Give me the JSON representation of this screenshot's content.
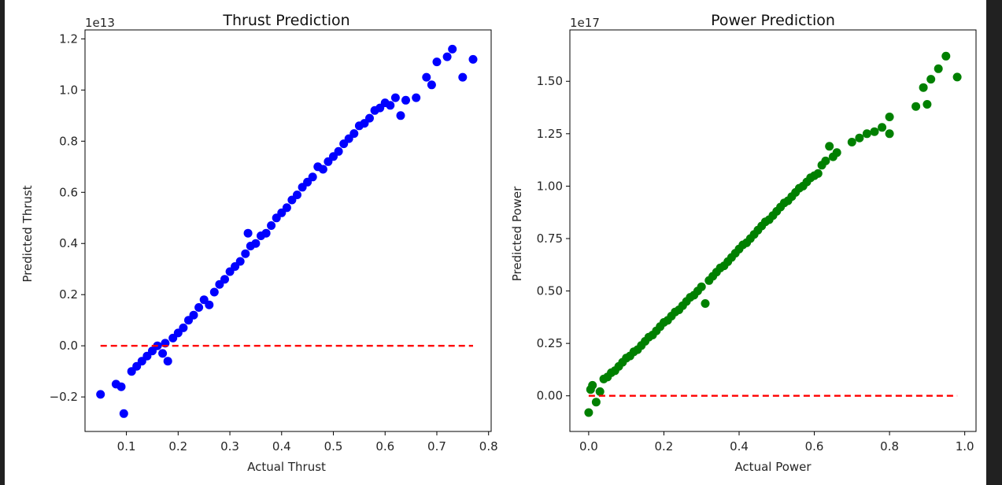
{
  "chart_data": [
    {
      "type": "scatter",
      "title": "Thrust Prediction",
      "xlabel": "Actual Thrust",
      "ylabel": "Predicted Thrust",
      "y_offset_text": "1e13",
      "xlim": [
        0.02,
        0.805
      ],
      "ylim": [
        -0.335,
        1.235
      ],
      "xticks": [
        0.1,
        0.2,
        0.3,
        0.4,
        0.5,
        0.6,
        0.7,
        0.8
      ],
      "xtick_labels": [
        "0.1",
        "0.2",
        "0.3",
        "0.4",
        "0.5",
        "0.6",
        "0.7",
        "0.8"
      ],
      "yticks": [
        -0.2,
        0.0,
        0.2,
        0.4,
        0.6,
        0.8,
        1.0,
        1.2
      ],
      "ytick_labels": [
        "−0.2",
        "0.0",
        "0.2",
        "0.4",
        "0.6",
        "0.8",
        "1.0",
        "1.2"
      ],
      "grid": false,
      "marker_color": "#0000ff",
      "reference_line": {
        "x": [
          0.05,
          0.77
        ],
        "y": [
          0.0,
          0.0
        ],
        "color": "#ff0000",
        "style": "dashed"
      },
      "series": [
        {
          "points": [
            [
              0.05,
              -0.19
            ],
            [
              0.08,
              -0.15
            ],
            [
              0.09,
              -0.16
            ],
            [
              0.095,
              -0.265
            ],
            [
              0.11,
              -0.1
            ],
            [
              0.12,
              -0.08
            ],
            [
              0.13,
              -0.06
            ],
            [
              0.14,
              -0.04
            ],
            [
              0.15,
              -0.02
            ],
            [
              0.16,
              0.0
            ],
            [
              0.17,
              -0.03
            ],
            [
              0.175,
              0.01
            ],
            [
              0.18,
              -0.06
            ],
            [
              0.19,
              0.03
            ],
            [
              0.2,
              0.05
            ],
            [
              0.21,
              0.07
            ],
            [
              0.22,
              0.1
            ],
            [
              0.23,
              0.12
            ],
            [
              0.24,
              0.15
            ],
            [
              0.25,
              0.18
            ],
            [
              0.26,
              0.16
            ],
            [
              0.27,
              0.21
            ],
            [
              0.28,
              0.24
            ],
            [
              0.29,
              0.26
            ],
            [
              0.3,
              0.29
            ],
            [
              0.31,
              0.31
            ],
            [
              0.32,
              0.33
            ],
            [
              0.33,
              0.36
            ],
            [
              0.335,
              0.44
            ],
            [
              0.34,
              0.39
            ],
            [
              0.35,
              0.4
            ],
            [
              0.36,
              0.43
            ],
            [
              0.37,
              0.44
            ],
            [
              0.38,
              0.47
            ],
            [
              0.39,
              0.5
            ],
            [
              0.4,
              0.52
            ],
            [
              0.41,
              0.54
            ],
            [
              0.42,
              0.57
            ],
            [
              0.43,
              0.59
            ],
            [
              0.44,
              0.62
            ],
            [
              0.45,
              0.64
            ],
            [
              0.46,
              0.66
            ],
            [
              0.47,
              0.7
            ],
            [
              0.48,
              0.69
            ],
            [
              0.49,
              0.72
            ],
            [
              0.5,
              0.74
            ],
            [
              0.51,
              0.76
            ],
            [
              0.52,
              0.79
            ],
            [
              0.53,
              0.81
            ],
            [
              0.54,
              0.83
            ],
            [
              0.55,
              0.86
            ],
            [
              0.56,
              0.87
            ],
            [
              0.57,
              0.89
            ],
            [
              0.58,
              0.92
            ],
            [
              0.59,
              0.93
            ],
            [
              0.6,
              0.95
            ],
            [
              0.61,
              0.94
            ],
            [
              0.62,
              0.97
            ],
            [
              0.63,
              0.9
            ],
            [
              0.64,
              0.96
            ],
            [
              0.66,
              0.97
            ],
            [
              0.68,
              1.05
            ],
            [
              0.69,
              1.02
            ],
            [
              0.7,
              1.11
            ],
            [
              0.72,
              1.13
            ],
            [
              0.73,
              1.16
            ],
            [
              0.75,
              1.05
            ],
            [
              0.77,
              1.12
            ]
          ]
        }
      ]
    },
    {
      "type": "scatter",
      "title": "Power Prediction",
      "xlabel": "Actual Power",
      "ylabel": "Predicted Power",
      "y_offset_text": "1e17",
      "xlim": [
        -0.05,
        1.03
      ],
      "ylim": [
        -0.17,
        1.745
      ],
      "xticks": [
        0.0,
        0.2,
        0.4,
        0.6,
        0.8,
        1.0
      ],
      "xtick_labels": [
        "0.0",
        "0.2",
        "0.4",
        "0.6",
        "0.8",
        "1.0"
      ],
      "yticks": [
        0.0,
        0.25,
        0.5,
        0.75,
        1.0,
        1.25,
        1.5
      ],
      "ytick_labels": [
        "0.00",
        "0.25",
        "0.50",
        "0.75",
        "1.00",
        "1.25",
        "1.50"
      ],
      "grid": false,
      "marker_color": "#008000",
      "reference_line": {
        "x": [
          0.0,
          0.98
        ],
        "y": [
          0.0,
          0.0
        ],
        "color": "#ff0000",
        "style": "dashed"
      },
      "series": [
        {
          "points": [
            [
              0.0,
              -0.08
            ],
            [
              0.005,
              0.03
            ],
            [
              0.01,
              0.05
            ],
            [
              0.02,
              -0.03
            ],
            [
              0.03,
              0.02
            ],
            [
              0.04,
              0.08
            ],
            [
              0.05,
              0.09
            ],
            [
              0.06,
              0.11
            ],
            [
              0.07,
              0.12
            ],
            [
              0.08,
              0.14
            ],
            [
              0.09,
              0.16
            ],
            [
              0.1,
              0.18
            ],
            [
              0.11,
              0.19
            ],
            [
              0.12,
              0.21
            ],
            [
              0.13,
              0.22
            ],
            [
              0.14,
              0.24
            ],
            [
              0.15,
              0.26
            ],
            [
              0.16,
              0.28
            ],
            [
              0.17,
              0.29
            ],
            [
              0.18,
              0.31
            ],
            [
              0.19,
              0.33
            ],
            [
              0.2,
              0.35
            ],
            [
              0.21,
              0.36
            ],
            [
              0.22,
              0.38
            ],
            [
              0.23,
              0.4
            ],
            [
              0.24,
              0.41
            ],
            [
              0.25,
              0.43
            ],
            [
              0.26,
              0.45
            ],
            [
              0.27,
              0.47
            ],
            [
              0.28,
              0.48
            ],
            [
              0.29,
              0.5
            ],
            [
              0.3,
              0.52
            ],
            [
              0.31,
              0.44
            ],
            [
              0.32,
              0.55
            ],
            [
              0.33,
              0.57
            ],
            [
              0.34,
              0.59
            ],
            [
              0.35,
              0.61
            ],
            [
              0.36,
              0.62
            ],
            [
              0.37,
              0.64
            ],
            [
              0.38,
              0.66
            ],
            [
              0.39,
              0.68
            ],
            [
              0.4,
              0.7
            ],
            [
              0.41,
              0.72
            ],
            [
              0.42,
              0.73
            ],
            [
              0.43,
              0.75
            ],
            [
              0.44,
              0.77
            ],
            [
              0.45,
              0.79
            ],
            [
              0.46,
              0.81
            ],
            [
              0.47,
              0.83
            ],
            [
              0.48,
              0.84
            ],
            [
              0.49,
              0.86
            ],
            [
              0.5,
              0.88
            ],
            [
              0.51,
              0.9
            ],
            [
              0.52,
              0.92
            ],
            [
              0.53,
              0.93
            ],
            [
              0.54,
              0.95
            ],
            [
              0.55,
              0.97
            ],
            [
              0.56,
              0.99
            ],
            [
              0.57,
              1.0
            ],
            [
              0.58,
              1.02
            ],
            [
              0.59,
              1.04
            ],
            [
              0.6,
              1.05
            ],
            [
              0.61,
              1.06
            ],
            [
              0.62,
              1.1
            ],
            [
              0.63,
              1.12
            ],
            [
              0.64,
              1.19
            ],
            [
              0.65,
              1.14
            ],
            [
              0.66,
              1.16
            ],
            [
              0.7,
              1.21
            ],
            [
              0.72,
              1.23
            ],
            [
              0.74,
              1.25
            ],
            [
              0.76,
              1.26
            ],
            [
              0.78,
              1.28
            ],
            [
              0.8,
              1.33
            ],
            [
              0.8,
              1.25
            ],
            [
              0.87,
              1.38
            ],
            [
              0.89,
              1.47
            ],
            [
              0.9,
              1.39
            ],
            [
              0.91,
              1.51
            ],
            [
              0.93,
              1.56
            ],
            [
              0.95,
              1.62
            ],
            [
              0.98,
              1.52
            ]
          ]
        }
      ]
    }
  ]
}
